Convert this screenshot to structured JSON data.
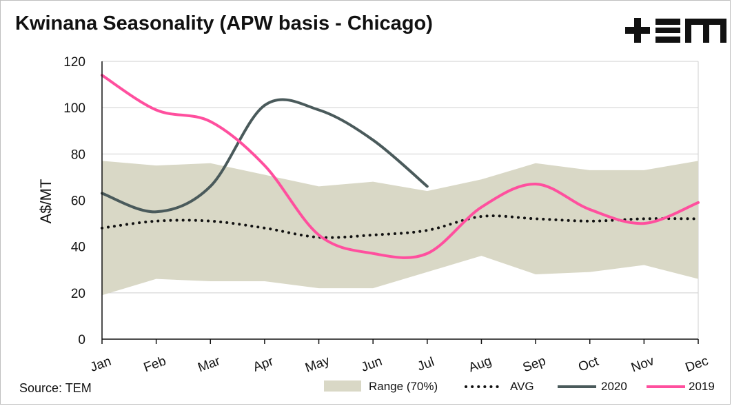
{
  "title": "Kwinana Seasonality (APW basis - Chicago)",
  "source": "Source: TEM",
  "brand": {
    "logo_text": "+EM",
    "color": "#111111"
  },
  "colors": {
    "range": "#d9d8c6",
    "avg": "#111111",
    "s2020": "#4a5a5b",
    "s2019": "#ff4f9e",
    "grid": "#cfcfcf",
    "axis": "#111111"
  },
  "chart_data": {
    "type": "line",
    "title": "Kwinana Seasonality (APW basis - Chicago)",
    "xlabel": "",
    "ylabel": "A$/MT",
    "ylim": [
      0,
      120
    ],
    "yticks": [
      0,
      20,
      40,
      60,
      80,
      100,
      120
    ],
    "grid": true,
    "legend_position": "bottom-right",
    "categories": [
      "Jan",
      "Feb",
      "Mar",
      "Apr",
      "May",
      "Jun",
      "Jul",
      "Aug",
      "Sep",
      "Oct",
      "Nov",
      "Dec"
    ],
    "range": {
      "name": "Range (70%)",
      "low": [
        19,
        26,
        25,
        25,
        22,
        22,
        29,
        36,
        28,
        29,
        32,
        26
      ],
      "high": [
        77,
        75,
        76,
        71,
        66,
        68,
        64,
        69,
        76,
        73,
        73,
        77
      ]
    },
    "series": [
      {
        "name": "AVG",
        "values": [
          48,
          51,
          51,
          48,
          44,
          45,
          47,
          53,
          52,
          51,
          52,
          52
        ]
      },
      {
        "name": "2020",
        "values": [
          63,
          55,
          66,
          101,
          99,
          86,
          66,
          null,
          null,
          null,
          null,
          null
        ]
      },
      {
        "name": "2019",
        "values": [
          114,
          99,
          94,
          75,
          45,
          37,
          37,
          57,
          67,
          56,
          50,
          59
        ]
      }
    ]
  }
}
